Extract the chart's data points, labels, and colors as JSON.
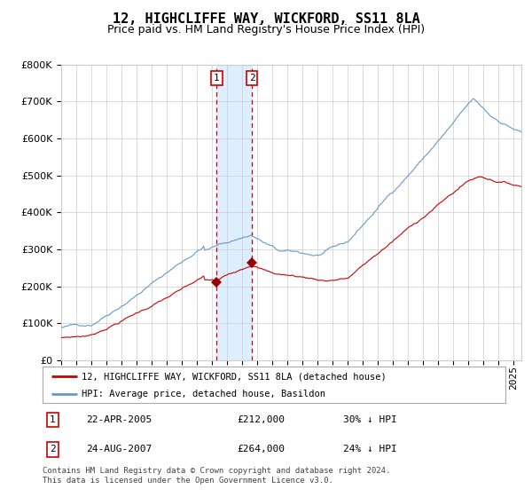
{
  "title": "12, HIGHCLIFFE WAY, WICKFORD, SS11 8LA",
  "subtitle": "Price paid vs. HM Land Registry's House Price Index (HPI)",
  "red_label": "12, HIGHCLIFFE WAY, WICKFORD, SS11 8LA (detached house)",
  "blue_label": "HPI: Average price, detached house, Basildon",
  "event1_date": "22-APR-2005",
  "event1_price": "£212,000",
  "event1_hpi": "30% ↓ HPI",
  "event2_date": "24-AUG-2007",
  "event2_price": "£264,000",
  "event2_hpi": "24% ↓ HPI",
  "footer": "Contains HM Land Registry data © Crown copyright and database right 2024.\nThis data is licensed under the Open Government Licence v3.0.",
  "ylim": [
    0,
    800000
  ],
  "yticks": [
    0,
    100000,
    200000,
    300000,
    400000,
    500000,
    600000,
    700000,
    800000
  ],
  "xlim_start": 1995.0,
  "xlim_end": 2025.5,
  "event1_x": 2005.31,
  "event2_x": 2007.65,
  "background_color": "#ffffff",
  "grid_color": "#cccccc",
  "red_line_color": "#cc0000",
  "blue_line_color": "#6699cc",
  "shade_color": "#ddeeff",
  "dashed_color": "#cc0000",
  "marker_color": "#990000",
  "event_box_color": "#cc0000",
  "title_fontsize": 11,
  "subtitle_fontsize": 9,
  "axis_fontsize": 8,
  "legend_fontsize": 8,
  "footer_fontsize": 6.5
}
